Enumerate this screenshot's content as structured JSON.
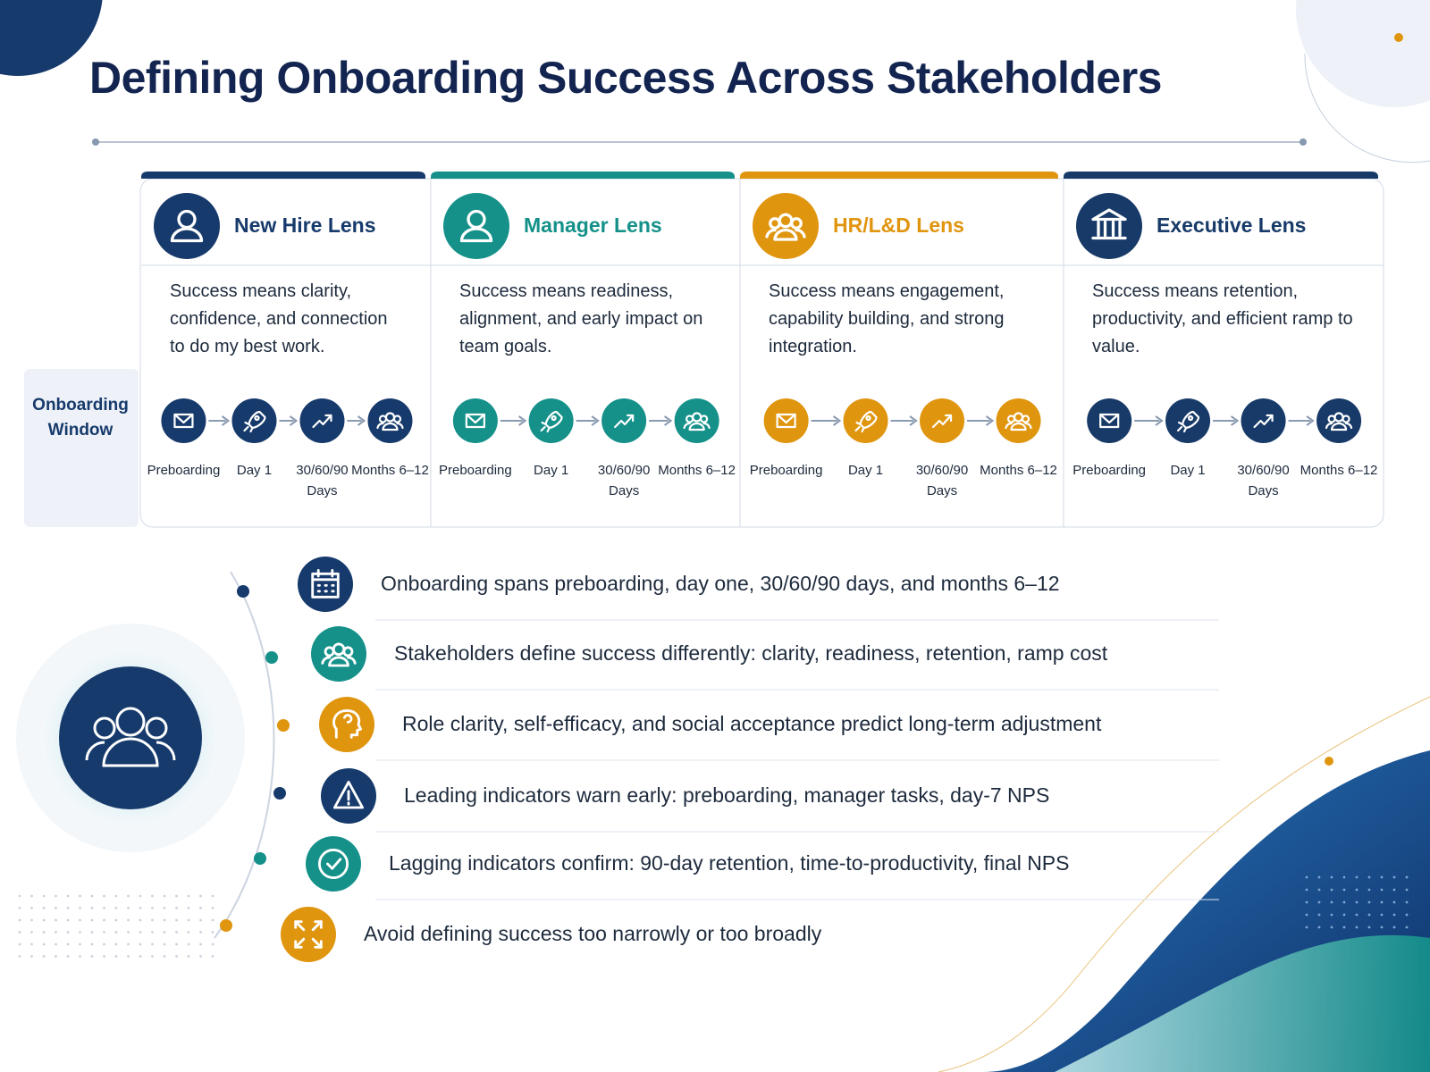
{
  "title": "Defining Onboarding Success Across Stakeholders",
  "side_label": "Onboarding Window",
  "stages": [
    "Preboarding",
    "Day 1",
    "30/60/90 Days",
    "Months 6–12"
  ],
  "lenses": [
    {
      "title": "New Hire Lens",
      "color": "#163a6b",
      "description": "Success means clarity, confidence, and connection to do my best work."
    },
    {
      "title": "Manager Lens",
      "color": "#15918a",
      "description": "Success means readiness, alignment, and early impact on team goals."
    },
    {
      "title": "HR/L&D Lens",
      "color": "#e0950f",
      "description": "Success means engagement, capability building, and strong integration."
    },
    {
      "title": "Executive Lens",
      "color": "#173a68",
      "description": "Success means retention, productivity, and efficient ramp to value."
    }
  ],
  "points": [
    {
      "text": "Onboarding spans preboarding, day one, 30/60/90 days, and months 6–12",
      "color": "#163a6b"
    },
    {
      "text": "Stakeholders define success differently: clarity, readiness, retention, ramp cost",
      "color": "#15918a"
    },
    {
      "text": "Role clarity, self-efficacy, and social acceptance predict long-term adjustment",
      "color": "#e0950f"
    },
    {
      "text": "Leading indicators warn early: preboarding, manager tasks, day-7 NPS",
      "color": "#163a6b"
    },
    {
      "text": "Lagging indicators confirm: 90-day retention, time-to-productivity, final NPS",
      "color": "#15918a"
    },
    {
      "text": "Avoid defining success too narrowly or too broadly",
      "color": "#e0950f"
    }
  ]
}
